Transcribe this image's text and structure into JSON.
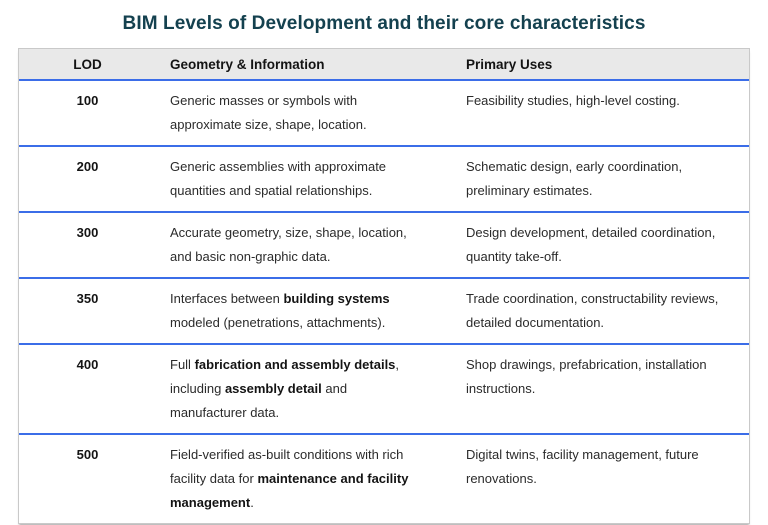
{
  "title": "BIM Levels of Development and their core characteristics",
  "table": {
    "columns": [
      "LOD",
      "Geometry & Information",
      "Primary Uses"
    ],
    "rows": [
      {
        "lod": "100",
        "geometry": [
          {
            "t": "Generic masses or symbols with approximate size, shape, location.",
            "b": false
          }
        ],
        "uses": "Feasibility studies, high-level costing."
      },
      {
        "lod": "200",
        "geometry": [
          {
            "t": "Generic assemblies with approximate quantities and spatial relationships.",
            "b": false
          }
        ],
        "uses": "Schematic design, early coordination, preliminary estimates."
      },
      {
        "lod": "300",
        "geometry": [
          {
            "t": "Accurate geometry, size, shape, location, and basic non-graphic data.",
            "b": false
          }
        ],
        "uses": "Design development, detailed coordination, quantity take-off."
      },
      {
        "lod": "350",
        "geometry": [
          {
            "t": "Interfaces between ",
            "b": false
          },
          {
            "t": "building systems",
            "b": true
          },
          {
            "t": " modeled (penetrations, attachments).",
            "b": false
          }
        ],
        "uses": "Trade coordination, constructability reviews, detailed documentation."
      },
      {
        "lod": "400",
        "geometry": [
          {
            "t": "Full ",
            "b": false
          },
          {
            "t": "fabrication and assembly details",
            "b": true
          },
          {
            "t": ", including ",
            "b": false
          },
          {
            "t": "assembly detail",
            "b": true
          },
          {
            "t": " and manufacturer data.",
            "b": false
          }
        ],
        "uses": "Shop drawings, prefabrication, installation instructions."
      },
      {
        "lod": "500",
        "geometry": [
          {
            "t": "Field-verified as-built conditions with rich facility data for ",
            "b": false
          },
          {
            "t": "maintenance and facility management",
            "b": true
          },
          {
            "t": ".",
            "b": false
          }
        ],
        "uses": "Digital twins, facility management, future renovations."
      }
    ]
  },
  "colors": {
    "title_text": "#14414f",
    "header_background": "#e9e9e9",
    "row_divider_blue": "#3b6de8",
    "table_border": "#c9c9c9",
    "body_text": "#2b2b2b"
  }
}
